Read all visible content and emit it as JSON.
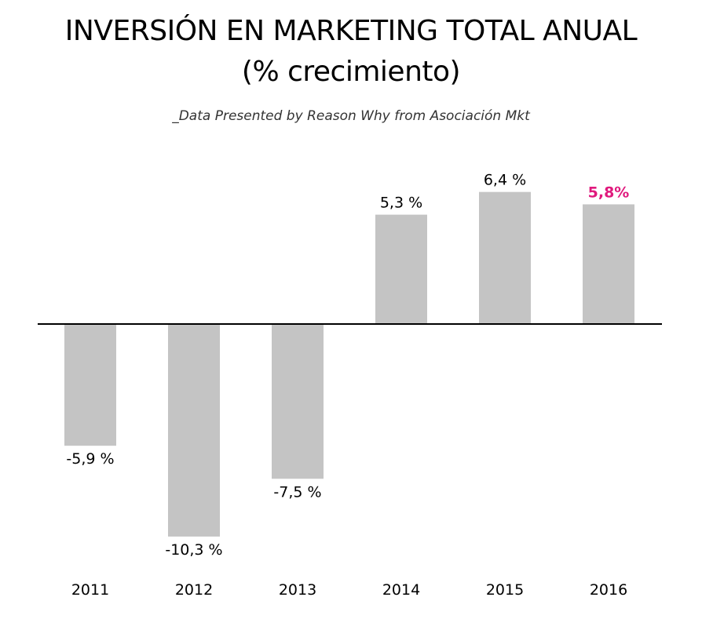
{
  "chart_data": {
    "type": "bar",
    "title": "INVERSIÓN EN MARKETING TOTAL ANUAL",
    "title_line2": "(% crecimiento)",
    "subtitle": "_Data Presented by Reason Why from Asociación Mkt",
    "categories": [
      "2011",
      "2012",
      "2013",
      "2014",
      "2015",
      "2016"
    ],
    "values": [
      -5.9,
      -10.3,
      -7.5,
      5.3,
      6.4,
      5.8
    ],
    "value_labels": [
      "-5,9 %",
      "-10,3 %",
      "-7,5 %",
      "5,3 %",
      "6,4 %",
      "5,8%"
    ],
    "highlight_index": 5,
    "ylim": [
      -10.3,
      6.4
    ],
    "grid": false,
    "legend": "none",
    "colors": {
      "bar": "#c4c4c4",
      "axis": "#000000",
      "label": "#000000",
      "highlight": "#e0197d"
    }
  }
}
